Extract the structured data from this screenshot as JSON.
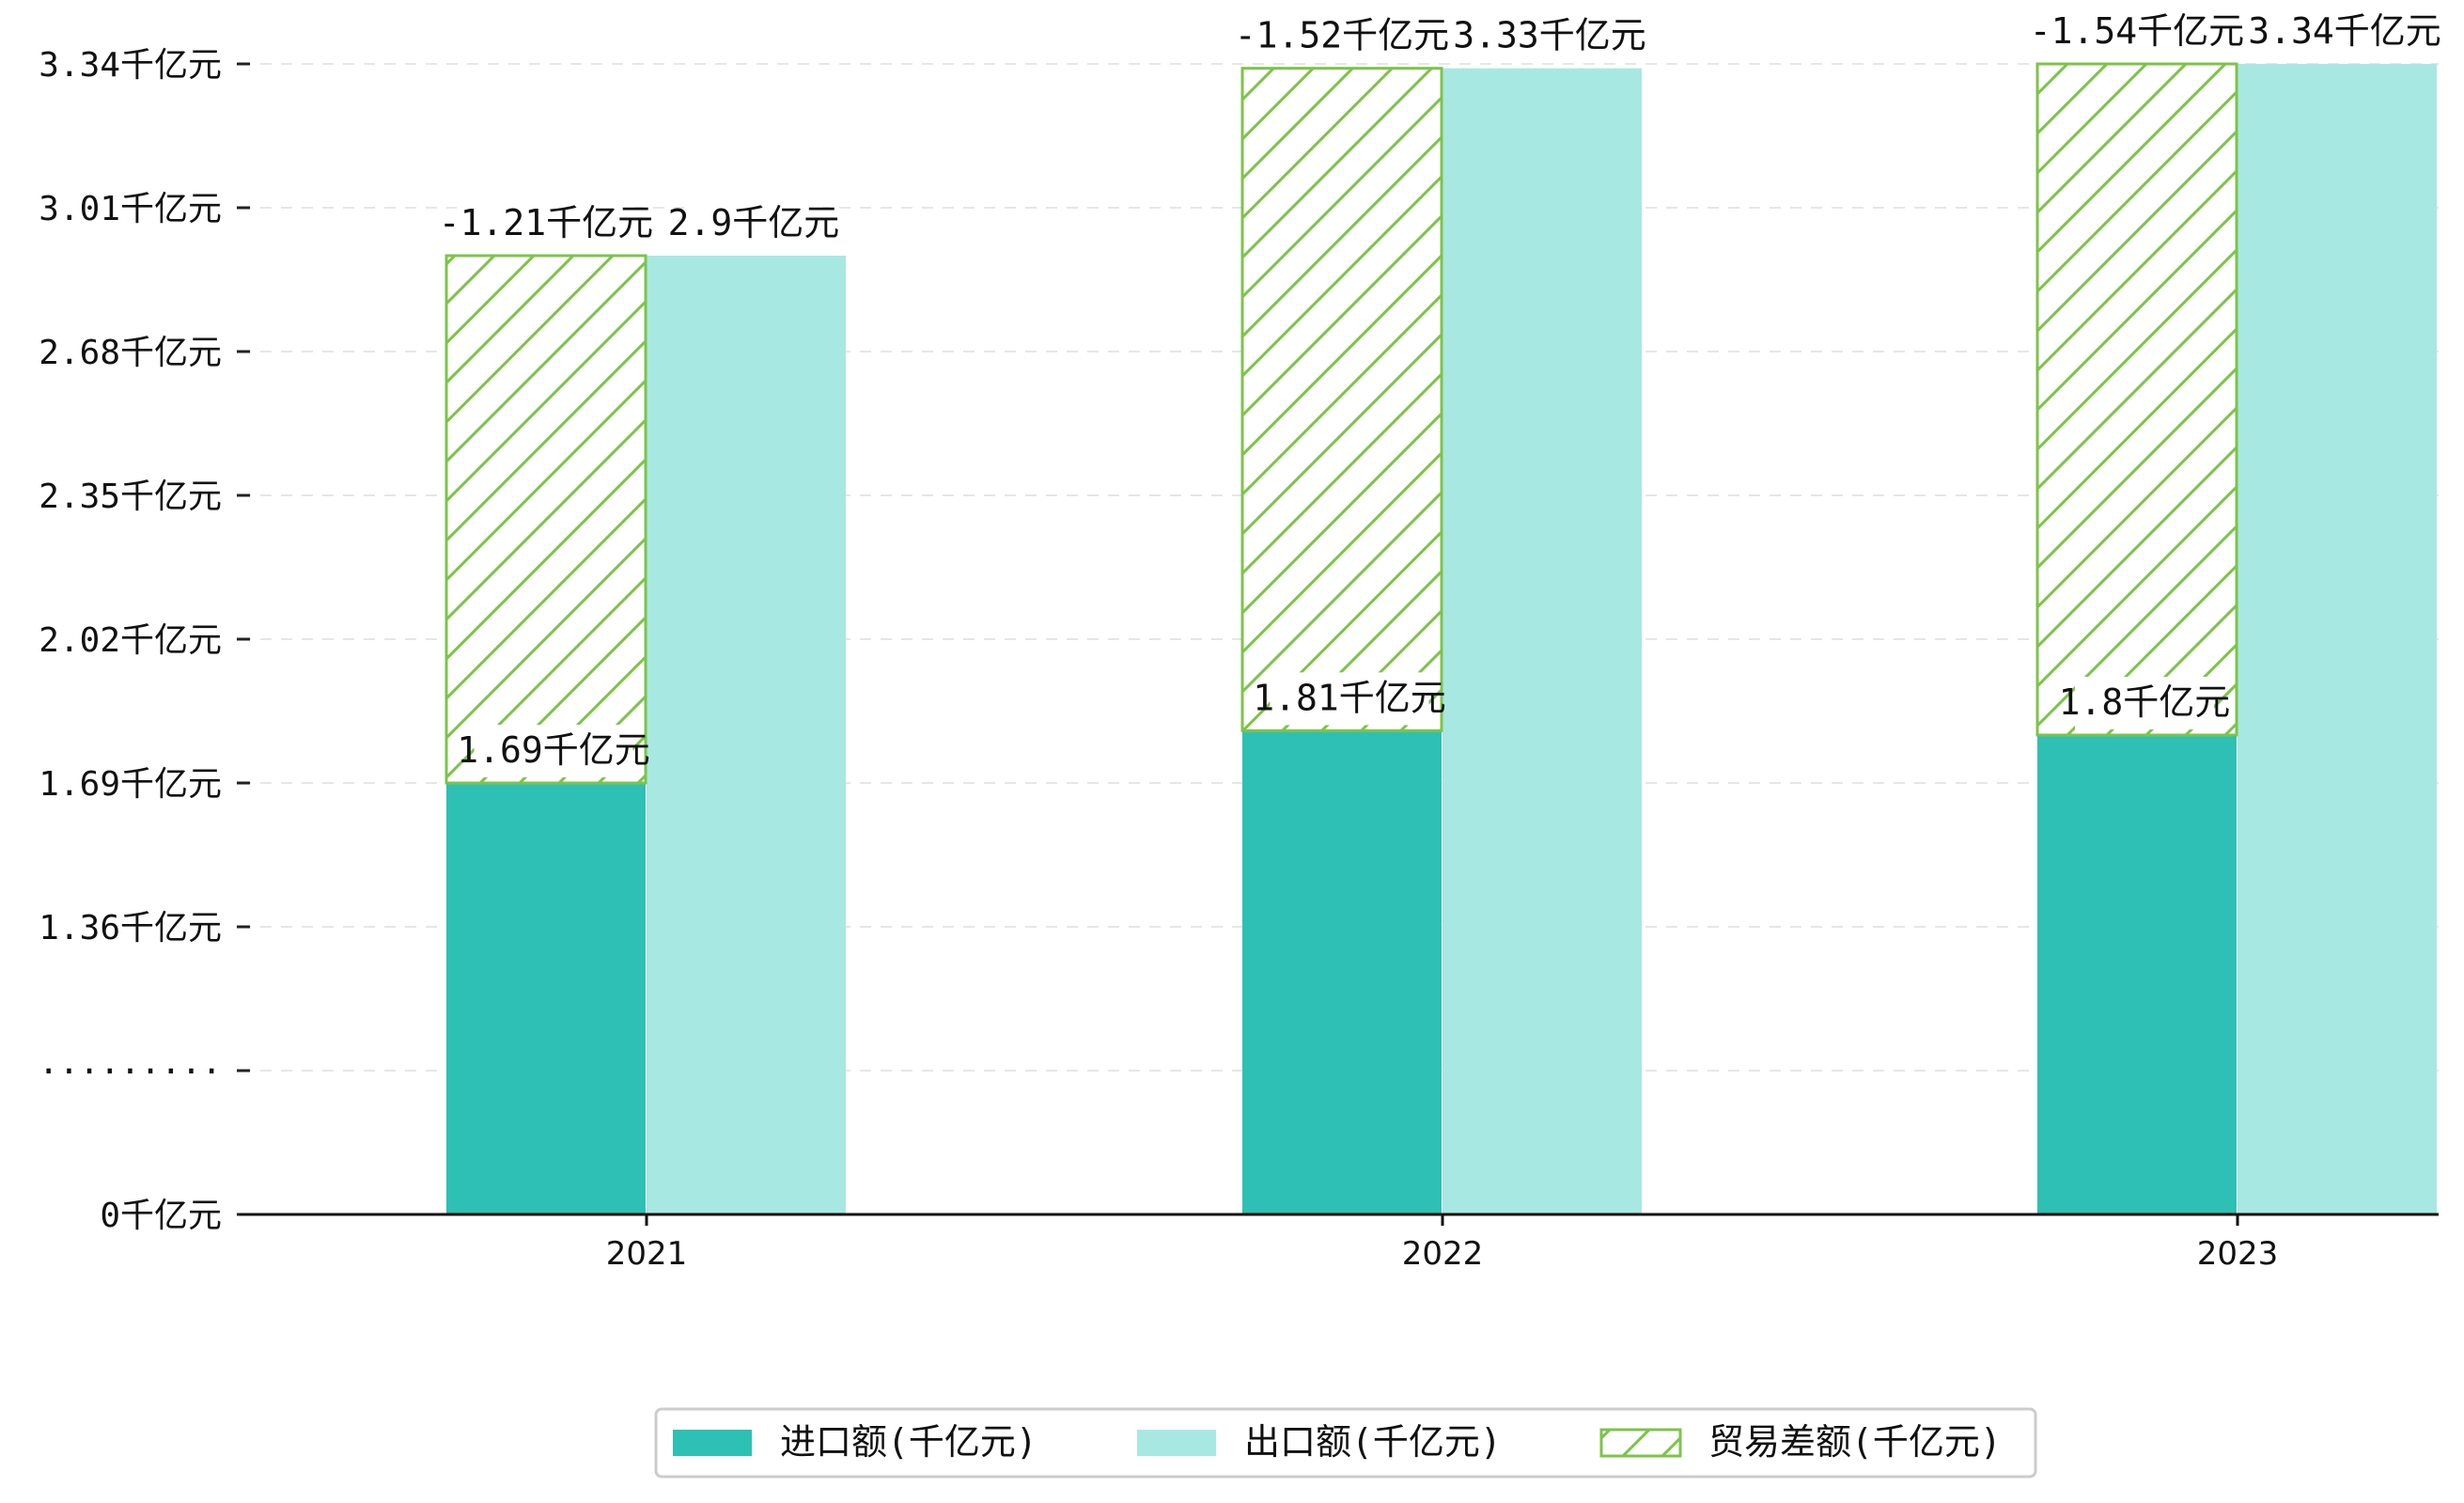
{
  "chart_data": {
    "type": "bar",
    "categories": [
      "2021",
      "2022",
      "2023"
    ],
    "y_tick_labels": [
      "0千亿元",
      "·········",
      "1.36千亿元",
      "1.69千亿元",
      "2.02千亿元",
      "2.35千亿元",
      "2.68千亿元",
      "3.01千亿元",
      "3.34千亿元"
    ],
    "y_break_label": "·········",
    "ylim": [
      0,
      3.34
    ],
    "grid": "horizontal dashed",
    "legend_placement": "bottom-center",
    "series": [
      {
        "name": "进口额(千亿元)",
        "values": [
          1.69,
          1.81,
          1.8
        ],
        "labels": [
          "1.69千亿元",
          "1.81千亿元",
          "1.8千亿元"
        ],
        "color": "#2ec0b4"
      },
      {
        "name": "出口额(千亿元)",
        "values": [
          2.9,
          3.33,
          3.34
        ],
        "labels": [
          "2.9千亿元",
          "3.33千亿元",
          "3.34千亿元"
        ],
        "color": "#a8e8e2"
      },
      {
        "name": "贸易差额(千亿元)",
        "values": [
          -1.21,
          -1.52,
          -1.54
        ],
        "labels": [
          "-1.21千亿元",
          "-1.52千亿元",
          "-1.54千亿元"
        ],
        "color": "#7cc44a"
      }
    ]
  }
}
